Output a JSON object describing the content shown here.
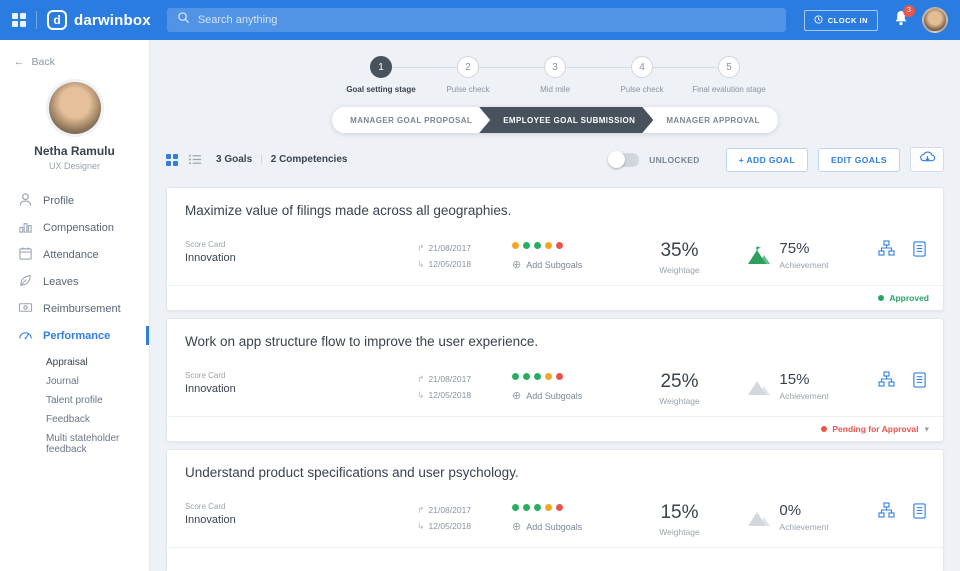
{
  "topbar": {
    "logo_mark": "d",
    "logo_text": "darwinbox",
    "search_placeholder": "Search anything",
    "clock_in_label": "CLOCK IN",
    "notification_count": "3"
  },
  "icons": {
    "back_arrow": "←",
    "date_start": "↱",
    "date_end": "↳",
    "add_plus": "⊕",
    "chevron_down": "▾",
    "count_divider": "|"
  },
  "sidebar": {
    "back_label": "Back",
    "user": {
      "name": "Netha Ramulu",
      "role": "UX Designer"
    },
    "items": [
      {
        "label": "Profile"
      },
      {
        "label": "Compensation"
      },
      {
        "label": "Attendance"
      },
      {
        "label": "Leaves"
      },
      {
        "label": "Reimbursement"
      },
      {
        "label": "Performance"
      }
    ],
    "sub_items": [
      {
        "label": "Appraisal"
      },
      {
        "label": "Journal"
      },
      {
        "label": "Talent profile"
      },
      {
        "label": "Feedback"
      },
      {
        "label": "Multi stateholder feedback"
      }
    ]
  },
  "stepper": {
    "steps": [
      {
        "number": "1",
        "label": "Goal setting stage"
      },
      {
        "number": "2",
        "label": "Pulse check"
      },
      {
        "number": "3",
        "label": "Mid mile"
      },
      {
        "number": "4",
        "label": "Pulse check"
      },
      {
        "number": "5",
        "label": "Final evalution stage"
      }
    ]
  },
  "workflow_tabs": [
    {
      "label": "MANAGER GOAL PROPOSAL"
    },
    {
      "label": "EMPLOYEE GOAL SUBMISSION"
    },
    {
      "label": "MANAGER APPROVAL"
    }
  ],
  "toolbar": {
    "goals_count": "3 Goals",
    "competencies_count": "2 Competencies",
    "toggle_label": "UNLOCKED",
    "add_goal_label": "+ ADD GOAL",
    "edit_goals_label": "EDIT GOALS"
  },
  "goals": [
    {
      "title": "Maximize value of filings made across all geographies.",
      "score_card_label": "Score Card",
      "category": "Innovation",
      "start_date": "21/08/2017",
      "end_date": "12/05/2018",
      "add_subgoals": "Add Subgoals",
      "dots": [
        "#f5a623",
        "#27ae60",
        "#27ae60",
        "#f5a623",
        "#e8554d"
      ],
      "weightage_value": "35%",
      "weightage_label": "Weightage",
      "achievement_value": "75%",
      "achievement_label": "Achievement",
      "achievement_color": "#2aa05a",
      "status_label": "Approved",
      "status_color": "#27a567"
    },
    {
      "title": "Work on app structure flow to improve the user experience.",
      "score_card_label": "Score Card",
      "category": "Innovation",
      "start_date": "21/08/2017",
      "end_date": "12/05/2018",
      "add_subgoals": "Add Subgoals",
      "dots": [
        "#27ae60",
        "#27ae60",
        "#27ae60",
        "#f5a623",
        "#e8554d"
      ],
      "weightage_value": "25%",
      "weightage_label": "Weightage",
      "achievement_value": "15%",
      "achievement_label": "Achievement",
      "achievement_color": "#d2d8de",
      "status_label": "Pending for Approval",
      "status_color": "#e8564e"
    },
    {
      "title": "Understand product specifications and user psychology.",
      "score_card_label": "Score Card",
      "category": "Innovation",
      "start_date": "21/08/2017",
      "end_date": "12/05/2018",
      "add_subgoals": "Add Subgoals",
      "dots": [
        "#27ae60",
        "#27ae60",
        "#27ae60",
        "#f5a623",
        "#e8554d"
      ],
      "weightage_value": "15%",
      "weightage_label": "Weightage",
      "achievement_value": "0%",
      "achievement_label": "Achievement",
      "achievement_color": "#d2d8de"
    }
  ]
}
